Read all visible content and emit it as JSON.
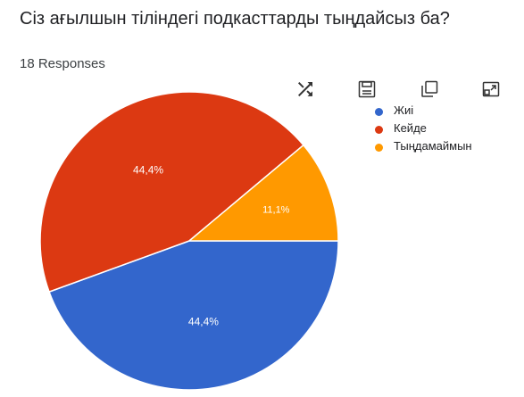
{
  "title": "Сіз ағылшын тіліндегі подкасттарды тыңдайсыз ба?",
  "responses": "18 Responses",
  "toolbar": {
    "icons": [
      "shuffle-icon",
      "save-icon",
      "copy-icon",
      "expand-icon"
    ]
  },
  "colors": {
    "Жиі": "#3366cc",
    "Кейде": "#dc3912",
    "Тыңдамаймын": "#ff9900"
  },
  "chart_data": {
    "type": "pie",
    "title": "Сіз ағылшын тіліндегі подкасттарды тыңдайсыз ба?",
    "categories": [
      "Жиі",
      "Кейде",
      "Тыңдамаймын"
    ],
    "values": [
      44.4,
      44.4,
      11.1
    ],
    "labels": [
      "44,4%",
      "44,4%",
      "11,1%"
    ],
    "colors": [
      "#3366cc",
      "#dc3912",
      "#ff9900"
    ],
    "legend_position": "right"
  },
  "legend": [
    {
      "label": "Жиі",
      "color": "#3366cc"
    },
    {
      "label": "Кейде",
      "color": "#dc3912"
    },
    {
      "label": "Тыңдамаймын",
      "color": "#ff9900"
    }
  ]
}
